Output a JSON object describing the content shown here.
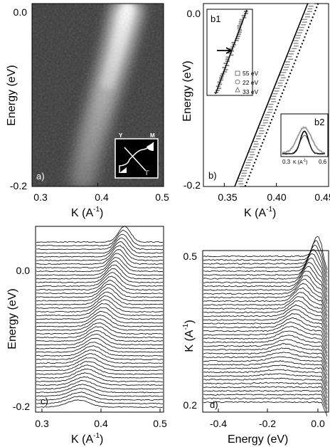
{
  "chart_data": [
    {
      "type": "heatmap",
      "panel_label": "a)",
      "xlabel": "K   (A",
      "xlabel_sup": "-1",
      "xlabel_close": ")",
      "ylabel": "Energy    (eV)",
      "xlim": [
        0.3,
        0.5
      ],
      "ylim": [
        -0.2,
        0.0
      ],
      "x_ticks": [
        "0.3",
        "0.4",
        "0.5"
      ],
      "y_ticks": [
        "0.0",
        "-0.2"
      ],
      "ridge": {
        "x": [
          0.445,
          0.43,
          0.41,
          0.39,
          0.375
        ],
        "y": [
          -0.005,
          -0.05,
          -0.1,
          -0.15,
          -0.2
        ]
      },
      "colormap": "grayscale",
      "inset": {
        "labels": [
          "Y",
          "M",
          "Γ"
        ]
      }
    },
    {
      "type": "line",
      "panel_label": "b)",
      "xlabel": "K   (A",
      "xlabel_sup": "-1",
      "xlabel_close": ")",
      "ylabel": "Energy   (eV)",
      "xlim": [
        0.33,
        0.45
      ],
      "ylim": [
        -0.2,
        0.0
      ],
      "x_ticks": [
        "0.35",
        "0.40",
        "0.45"
      ],
      "y_ticks": [
        "0.0",
        "-0.2"
      ],
      "series": [
        {
          "style": "solid",
          "x": [
            0.36,
            0.43
          ],
          "y": [
            -0.2,
            0.0
          ]
        },
        {
          "style": "dotted",
          "x": [
            0.37,
            0.44
          ],
          "y": [
            -0.2,
            0.0
          ]
        }
      ],
      "inset_b1": {
        "label": "b1",
        "legend": [
          "55 eV",
          "22 eV",
          "33 eV"
        ],
        "markers": [
          "square",
          "circle",
          "triangle"
        ]
      },
      "inset_b2": {
        "label": "b2",
        "x_ticks": [
          "0.3",
          "0.6"
        ],
        "xlabel": "K (A",
        "xlabel_sup": "-1",
        "xlabel_close": ")"
      }
    },
    {
      "type": "line",
      "panel_label": "c)",
      "xlabel": "K   (A",
      "xlabel_sup": "-1",
      "xlabel_close": ")",
      "ylabel": "Energy    (eV)",
      "xlim": [
        0.29,
        0.5
      ],
      "x_ticks": [
        "0.3",
        "0.4",
        "0.5"
      ],
      "y_ticks": [
        "0.0",
        "-0.2"
      ],
      "curve_count": 46,
      "description": "momentum distribution curves stacked by energy"
    },
    {
      "type": "line",
      "panel_label": "d)",
      "xlabel": "Energy   (eV)",
      "ylabel": "K   (A",
      "ylabel_sup": "-1",
      "ylabel_close": ")",
      "xlim": [
        -0.5,
        0.05
      ],
      "x_ticks": [
        "-0.4",
        "-0.2",
        "0.0"
      ],
      "y_ticks": [
        "0.5",
        "0.2"
      ],
      "curve_count": 40,
      "description": "energy distribution curves stacked by momentum"
    }
  ]
}
